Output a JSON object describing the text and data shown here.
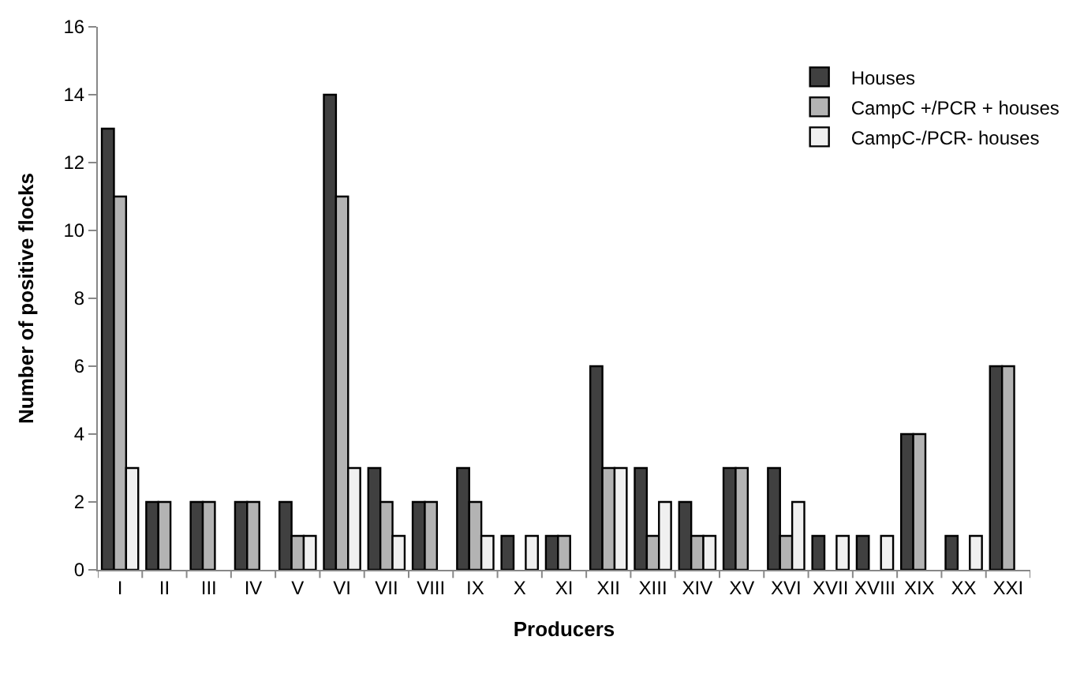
{
  "chart_data": {
    "type": "bar",
    "xlabel": "Producers",
    "ylabel": "Number of positive flocks",
    "categories": [
      "I",
      "II",
      "III",
      "IV",
      "V",
      "VI",
      "VII",
      "VIII",
      "IX",
      "X",
      "XI",
      "XII",
      "XIII",
      "XIV",
      "XV",
      "XVI",
      "XVII",
      "XVIII",
      "XIX",
      "XX",
      "XXI"
    ],
    "series": [
      {
        "name": "Houses",
        "color": "#404040",
        "values": [
          13,
          2,
          2,
          2,
          2,
          14,
          3,
          2,
          3,
          1,
          1,
          6,
          3,
          2,
          3,
          3,
          1,
          1,
          4,
          1,
          6
        ]
      },
      {
        "name": "CampC +/PCR + houses",
        "color": "#b3b3b3",
        "values": [
          11,
          2,
          2,
          2,
          1,
          11,
          2,
          2,
          2,
          0,
          1,
          3,
          1,
          1,
          3,
          1,
          0,
          0,
          4,
          0,
          6
        ]
      },
      {
        "name": "CampC-/PCR- houses",
        "color": "#f0f0f0",
        "values": [
          3,
          0,
          0,
          0,
          1,
          3,
          1,
          0,
          1,
          1,
          0,
          3,
          2,
          1,
          0,
          2,
          1,
          1,
          0,
          1,
          0
        ]
      }
    ],
    "ylim": [
      0,
      16
    ],
    "yticks": [
      0,
      2,
      4,
      6,
      8,
      10,
      12,
      14,
      16
    ],
    "legend": "top right"
  }
}
